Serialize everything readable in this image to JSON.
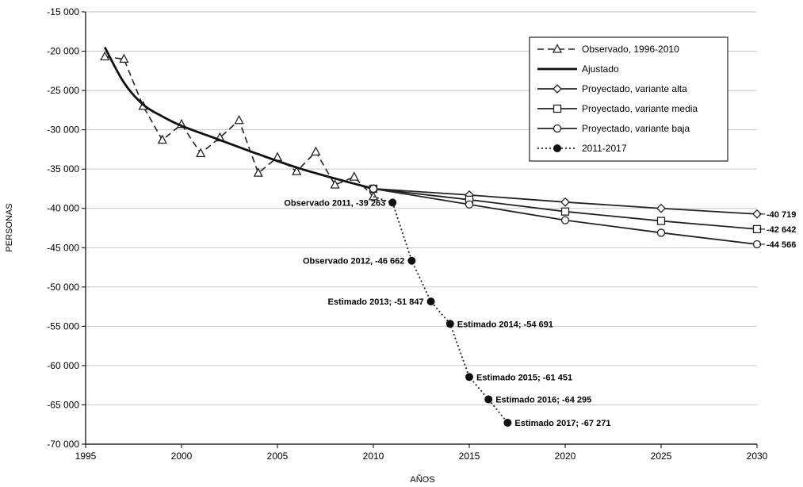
{
  "chart_data": {
    "type": "line",
    "xlabel": "AÑOS",
    "ylabel": "PERSONAS",
    "xlim": [
      1995,
      2030
    ],
    "ylim": [
      -70000,
      -15000
    ],
    "xticks": [
      1995,
      2000,
      2005,
      2010,
      2015,
      2020,
      2025,
      2030
    ],
    "xtick_labels": [
      "1995",
      "2000",
      "2005",
      "2010",
      "2015",
      "2020",
      "2025",
      "2030"
    ],
    "yticks": [
      -15000,
      -20000,
      -25000,
      -30000,
      -35000,
      -40000,
      -45000,
      -50000,
      -55000,
      -60000,
      -65000,
      -70000
    ],
    "ytick_labels": [
      "-15 000",
      "-20 000",
      "-25 000",
      "-30 000",
      "-35 000",
      "-40 000",
      "-45 000",
      "-50 000",
      "-55 000",
      "-60 000",
      "-65 000",
      "-70 000"
    ],
    "grid": "horizontal",
    "legend_position": "top-right",
    "series": [
      {
        "name": "Observado, 1996-2010",
        "style": "dashed",
        "marker": "triangle",
        "x": [
          1996,
          1997,
          1998,
          1999,
          2000,
          2001,
          2002,
          2003,
          2004,
          2005,
          2006,
          2007,
          2008,
          2009,
          2010
        ],
        "y": [
          -20700,
          -21000,
          -27000,
          -31300,
          -29300,
          -33000,
          -31000,
          -28800,
          -35500,
          -33500,
          -35300,
          -32800,
          -37000,
          -36000,
          -38500
        ]
      },
      {
        "name": "Ajustado",
        "style": "solid-thick",
        "marker": "none",
        "x": [
          1996,
          1997,
          1998,
          1999,
          2000,
          2002,
          2004,
          2006,
          2008,
          2010
        ],
        "y": [
          -19500,
          -24000,
          -26800,
          -28300,
          -29500,
          -31300,
          -33100,
          -34800,
          -36200,
          -37500
        ]
      },
      {
        "name": "Proyectado, variante alta",
        "style": "solid",
        "marker": "diamond",
        "x": [
          2010,
          2015,
          2020,
          2025,
          2030
        ],
        "y": [
          -37500,
          -38300,
          -39200,
          -40000,
          -40719
        ]
      },
      {
        "name": "Proyectado, variante media",
        "style": "solid",
        "marker": "square",
        "x": [
          2010,
          2015,
          2020,
          2025,
          2030
        ],
        "y": [
          -37500,
          -38900,
          -40400,
          -41600,
          -42642
        ]
      },
      {
        "name": "Proyectado, variante baja",
        "style": "solid",
        "marker": "circle-open",
        "x": [
          2010,
          2015,
          2020,
          2025,
          2030
        ],
        "y": [
          -37500,
          -39500,
          -41500,
          -43100,
          -44566
        ]
      },
      {
        "name": "2011-2017",
        "style": "dotted",
        "marker": "circle-filled",
        "x": [
          2010,
          2011,
          2012,
          2013,
          2014,
          2015,
          2016,
          2017
        ],
        "y": [
          -38500,
          -39263,
          -46662,
          -51847,
          -54691,
          -61451,
          -64295,
          -67271
        ]
      }
    ],
    "annotations": [
      {
        "text": "Observado 2011, -39 263",
        "x": 2011,
        "y": -39263,
        "side": "left"
      },
      {
        "text": "Observado 2012, -46 662",
        "x": 2012,
        "y": -46662,
        "side": "left"
      },
      {
        "text": "Estimado 2013; -51 847",
        "x": 2013,
        "y": -51847,
        "side": "left"
      },
      {
        "text": "Estimado 2014; -54 691",
        "x": 2014,
        "y": -54691,
        "side": "right"
      },
      {
        "text": "Estimado 2015; -61 451",
        "x": 2015,
        "y": -61451,
        "side": "right"
      },
      {
        "text": "Estimado 2016; -64 295",
        "x": 2016,
        "y": -64295,
        "side": "right"
      },
      {
        "text": "Estimado 2017; -67 271",
        "x": 2017,
        "y": -67271,
        "side": "right"
      },
      {
        "text": "-40 719",
        "x": 2030,
        "y": -40719,
        "side": "end"
      },
      {
        "text": "-42 642",
        "x": 2030,
        "y": -42642,
        "side": "end"
      },
      {
        "text": "-44 566",
        "x": 2030,
        "y": -44566,
        "side": "end"
      }
    ]
  }
}
